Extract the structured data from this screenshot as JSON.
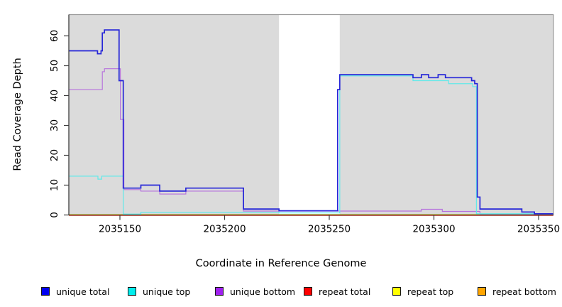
{
  "chart_data": {
    "type": "line",
    "subtype": "step-coverage",
    "title": "",
    "xlabel": "Coordinate in Reference Genome",
    "ylabel": "Read Coverage Depth",
    "x_ticks": [
      2035150,
      2035200,
      2035250,
      2035300,
      2035350
    ],
    "y_ticks": [
      0,
      10,
      20,
      30,
      40,
      50,
      60
    ],
    "xlim": [
      2035125.6,
      2035357
    ],
    "ylim": [
      0,
      62
    ],
    "grid": false,
    "legend_position": "bottom",
    "plot_background": "#dbdbdb",
    "gap_region": {
      "start": 2035226,
      "end": 2035255,
      "color": "#ffffff"
    },
    "series": [
      {
        "name": "repeat total",
        "swatch": "#ff0000",
        "line": "#dd2020",
        "points": [
          [
            2035125.6,
            0
          ],
          [
            2035357,
            0
          ]
        ]
      },
      {
        "name": "repeat top",
        "swatch": "#ffff00",
        "line": "#e9e838",
        "points": [
          [
            2035125.6,
            0
          ],
          [
            2035357,
            0
          ]
        ]
      },
      {
        "name": "repeat bottom",
        "swatch": "#ffa500",
        "line": "#ff9e12",
        "points": [
          [
            2035125.6,
            0
          ],
          [
            2035357,
            0
          ]
        ]
      },
      {
        "name": "unique bottom",
        "swatch": "#a020f0",
        "line": "#b671dd",
        "points": [
          [
            2035125.6,
            42
          ],
          [
            2035141.6,
            48
          ],
          [
            2035142.6,
            49
          ],
          [
            2035150.2,
            32
          ],
          [
            2035151.9,
            8.5
          ],
          [
            2035160,
            8
          ],
          [
            2035169,
            7
          ],
          [
            2035181.5,
            8
          ],
          [
            2035209,
            1.3
          ],
          [
            2035294,
            1.9
          ],
          [
            2035304,
            1.2
          ],
          [
            2035322,
            0.3
          ],
          [
            2035357,
            0.3
          ]
        ]
      },
      {
        "name": "unique top",
        "swatch": "#00eeee",
        "line": "#63e9e9",
        "points": [
          [
            2035125.6,
            13
          ],
          [
            2035139.5,
            12
          ],
          [
            2035141.3,
            13
          ],
          [
            2035151.6,
            0.3
          ],
          [
            2035160,
            0.9
          ],
          [
            2035226,
            0.7
          ],
          [
            2035255,
            46.6
          ],
          [
            2035290,
            45
          ],
          [
            2035307,
            44
          ],
          [
            2035318.5,
            43
          ],
          [
            2035320.3,
            0.4
          ],
          [
            2035357,
            0.4
          ]
        ]
      },
      {
        "name": "unique total",
        "swatch": "#0000f0",
        "line": "#2626d8",
        "points": [
          [
            2035125.6,
            55
          ],
          [
            2035139.3,
            54
          ],
          [
            2035141.0,
            55
          ],
          [
            2035141.6,
            61
          ],
          [
            2035142.6,
            62
          ],
          [
            2035149.6,
            45
          ],
          [
            2035151.6,
            9
          ],
          [
            2035160,
            10
          ],
          [
            2035169,
            8
          ],
          [
            2035181.5,
            9
          ],
          [
            2035209,
            2
          ],
          [
            2035226,
            1.4
          ],
          [
            2035254,
            42
          ],
          [
            2035255,
            47
          ],
          [
            2035290,
            46
          ],
          [
            2035294,
            47
          ],
          [
            2035297.5,
            46
          ],
          [
            2035302,
            47
          ],
          [
            2035305.5,
            46
          ],
          [
            2035318,
            45
          ],
          [
            2035319.5,
            44
          ],
          [
            2035320.7,
            6
          ],
          [
            2035322,
            2
          ],
          [
            2035342,
            1
          ],
          [
            2035348,
            0.4
          ],
          [
            2035357,
            0.4
          ]
        ]
      }
    ],
    "legend_order": [
      "unique total",
      "unique top",
      "unique bottom",
      "repeat total",
      "repeat top",
      "repeat bottom"
    ]
  }
}
